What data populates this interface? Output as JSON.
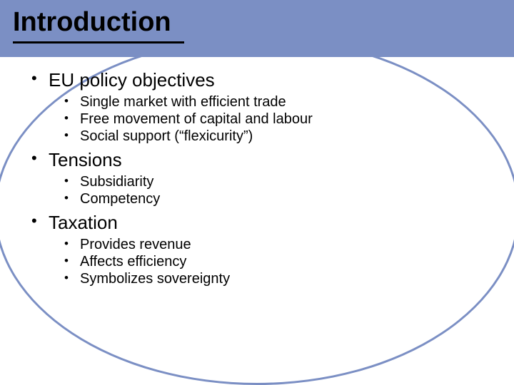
{
  "slide": {
    "title": "Introduction",
    "colors": {
      "band": "#7b8fc4",
      "oval_border": "#7b8fc4",
      "text": "#000000",
      "background": "#ffffff",
      "underline": "#000000"
    },
    "typography": {
      "title_fontsize": 38,
      "title_weight": "bold",
      "lvl1_fontsize": 26,
      "lvl2_fontsize": 20,
      "font_family": "Arial"
    },
    "bullets": [
      {
        "text": "EU policy objectives",
        "children": [
          {
            "text": "Single market with efficient trade"
          },
          {
            "text": "Free movement of capital and labour"
          },
          {
            "text": "Social support (“flexicurity”)"
          }
        ]
      },
      {
        "text": "Tensions",
        "children": [
          {
            "text": "Subsidiarity"
          },
          {
            "text": "Competency"
          }
        ]
      },
      {
        "text": "Taxation",
        "children": [
          {
            "text": "Provides revenue"
          },
          {
            "text": "Affects efficiency"
          },
          {
            "text": "Symbolizes sovereignty"
          }
        ]
      }
    ]
  }
}
